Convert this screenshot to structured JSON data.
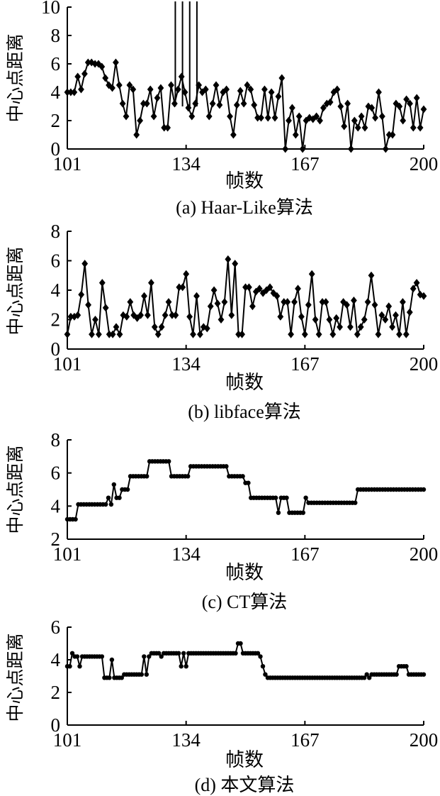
{
  "chart_data": [
    {
      "type": "line",
      "caption": "(a) Haar-Like算法",
      "xlabel": "帧数",
      "ylabel": "中心点距离",
      "xlim": [
        101,
        200
      ],
      "xticks": [
        101,
        134,
        167,
        200
      ],
      "ylim": [
        0,
        10
      ],
      "yticks": [
        0,
        2,
        4,
        6,
        8,
        10
      ],
      "marker": "diamond",
      "values": [
        4,
        4,
        4,
        5.1,
        4.2,
        5.3,
        6.1,
        6.1,
        6,
        6,
        5.8,
        5,
        4.5,
        4.3,
        6.1,
        4.5,
        3.2,
        2.3,
        4.5,
        4.2,
        1,
        2,
        3.2,
        3.2,
        4.2,
        2.3,
        3.6,
        4.3,
        1.5,
        1.5,
        4.5,
        3.2,
        4.2,
        5.1,
        4,
        2.9,
        2.3,
        3.2,
        4.5,
        4,
        4.2,
        2.3,
        3.2,
        4.5,
        3.1,
        4,
        4.2,
        2.3,
        1,
        3.1,
        4.1,
        3.2,
        4.5,
        4.2,
        3.1,
        2.2,
        2.2,
        4.2,
        2.2,
        4,
        2.2,
        3.7,
        5,
        0,
        2,
        2.9,
        1,
        2.3,
        0,
        2,
        2.2,
        2.1,
        2.3,
        2,
        2.9,
        3.2,
        3.3,
        4,
        4.2,
        3,
        1.6,
        3.2,
        0,
        2,
        1.5,
        2.3,
        1.5,
        3,
        2.9,
        2.2,
        4,
        2.3,
        0,
        1,
        1,
        3.2,
        3,
        2,
        3.5,
        3.2,
        1.5,
        3.6,
        1.5,
        2.8
      ],
      "spikes": [
        131,
        133,
        135,
        137
      ]
    },
    {
      "type": "line",
      "caption": "(b) libface算法",
      "xlabel": "帧数",
      "ylabel": "中心点距离",
      "xlim": [
        101,
        200
      ],
      "xticks": [
        101,
        134,
        167,
        200
      ],
      "ylim": [
        0,
        8
      ],
      "yticks": [
        0,
        2,
        4,
        6,
        8
      ],
      "marker": "diamond",
      "values": [
        1,
        2.2,
        2.2,
        2.3,
        3.7,
        5.8,
        3,
        1,
        2,
        1,
        4.5,
        2.8,
        1,
        1,
        1.5,
        1,
        2.3,
        2.2,
        3.2,
        2.3,
        2.1,
        2.3,
        3.6,
        2.3,
        4.5,
        1.5,
        1,
        1.5,
        2.3,
        3.2,
        2.3,
        2.3,
        4.2,
        4.2,
        5.1,
        2.2,
        1,
        3.6,
        1,
        1.5,
        1.4,
        2.9,
        4,
        3.1,
        2,
        3.2,
        6.1,
        2.3,
        5.8,
        1,
        1,
        4.2,
        4.2,
        2.9,
        3.9,
        4.1,
        3.8,
        4,
        4.2,
        3.8,
        3.6,
        2.2,
        3.2,
        3.2,
        1,
        3.2,
        4.1,
        2.2,
        1,
        3,
        5.1,
        2,
        1,
        3.2,
        3.2,
        2,
        1,
        2.1,
        1.5,
        3.2,
        3,
        1.5,
        3.3,
        1,
        1.5,
        2,
        3.2,
        5,
        3,
        1,
        2.3,
        2,
        2.9,
        1.5,
        2.3,
        1,
        3.2,
        1,
        2.5,
        4.1,
        4.5,
        3.7,
        3.6
      ],
      "spikes": []
    },
    {
      "type": "line",
      "caption": "(c) CT算法",
      "xlabel": "帧数",
      "ylabel": "中心点距离",
      "xlim": [
        101,
        200
      ],
      "xticks": [
        101,
        134,
        167,
        200
      ],
      "ylim": [
        2,
        8
      ],
      "yticks": [
        2,
        4,
        6,
        8
      ],
      "marker": "dot",
      "values": [
        3.2,
        3.2,
        3.2,
        3.2,
        4.1,
        4.1,
        4.1,
        4.1,
        4.1,
        4.1,
        4.1,
        4.1,
        4.1,
        4.1,
        4.1,
        4.5,
        4.1,
        5.3,
        4.5,
        4.5,
        5,
        5,
        5,
        5.8,
        5.8,
        5.8,
        5.8,
        5.8,
        5.8,
        5.8,
        6.7,
        6.7,
        6.7,
        6.7,
        6.7,
        6.7,
        6.7,
        6.7,
        5.8,
        5.8,
        5.8,
        5.8,
        5.8,
        5.8,
        5.8,
        6.4,
        6.4,
        6.4,
        6.4,
        6.4,
        6.4,
        6.4,
        6.4,
        6.4,
        6.4,
        6.4,
        6.4,
        6.4,
        6.4,
        5.8,
        5.8,
        5.8,
        5.8,
        5.8,
        5.8,
        5.4,
        5.4,
        4.5,
        4.5,
        4.5,
        4.5,
        4.5,
        4.5,
        4.5,
        4.5,
        4.5,
        4.5,
        3.6,
        4.5,
        4.5,
        4.5,
        3.6,
        3.6,
        3.6,
        3.6,
        3.6,
        3.6,
        4.5,
        4.2,
        4.2,
        4.2,
        4.2,
        4.2,
        4.2,
        4.2,
        4.2,
        4.2,
        4.2,
        4.2,
        4.2,
        4.2,
        4.2,
        4.2,
        4.2,
        4.2,
        4.2,
        5,
        5,
        5,
        5,
        5,
        5,
        5,
        5,
        5,
        5,
        5,
        5,
        5,
        5,
        5,
        5,
        5,
        5,
        5,
        5,
        5,
        5,
        5,
        5,
        5
      ],
      "spikes": []
    },
    {
      "type": "line",
      "caption": "(d) 本文算法",
      "xlabel": "帧数",
      "ylabel": "中心点距离",
      "xlim": [
        101,
        200
      ],
      "xticks": [
        101,
        134,
        167,
        200
      ],
      "ylim": [
        0,
        6
      ],
      "yticks": [
        0,
        2,
        4,
        6
      ],
      "marker": "dot",
      "values": [
        3.6,
        3.6,
        4.4,
        4.2,
        4.2,
        3.6,
        4.2,
        4.2,
        4.2,
        4.2,
        4.2,
        4.2,
        4.2,
        4.2,
        4.2,
        2.9,
        2.9,
        2.9,
        4,
        2.9,
        2.9,
        2.9,
        2.9,
        3.1,
        3.1,
        3.1,
        3.1,
        3.1,
        3.1,
        3.1,
        3.1,
        4.2,
        3.1,
        4.2,
        4.4,
        4.4,
        4.4,
        4.4,
        4.2,
        4.4,
        4.4,
        4.4,
        4.4,
        4.4,
        4.4,
        4.4,
        3.6,
        4.4,
        3.6,
        4.4,
        4.4,
        4.4,
        4.4,
        4.4,
        4.4,
        4.4,
        4.4,
        4.4,
        4.4,
        4.4,
        4.4,
        4.4,
        4.4,
        4.4,
        4.4,
        4.4,
        4.4,
        4.4,
        4.4,
        5,
        5,
        4.4,
        4.4,
        4.4,
        4.4,
        4.4,
        4.4,
        4.4,
        4.2,
        3.6,
        3.1,
        2.9,
        2.9,
        2.9,
        2.9,
        2.9,
        2.9,
        2.9,
        2.9,
        2.9,
        2.9,
        2.9,
        2.9,
        2.9,
        2.9,
        2.9,
        2.9,
        2.9,
        2.9,
        2.9,
        2.9,
        2.9,
        2.9,
        2.9,
        2.9,
        2.9,
        2.9,
        2.9,
        2.9,
        2.9,
        2.9,
        2.9,
        2.9,
        2.9,
        2.9,
        2.9,
        2.9,
        2.9,
        2.9,
        2.9,
        2.9,
        3.1,
        2.9,
        3.1,
        3.1,
        3.1,
        3.1,
        3.1,
        3.1,
        3.1,
        3.1,
        3.1,
        3.1,
        3.1,
        3.6,
        3.6,
        3.6,
        3.6,
        3.1,
        3.1,
        3.1,
        3.1,
        3.1,
        3.1,
        3.1
      ],
      "spikes": []
    }
  ]
}
